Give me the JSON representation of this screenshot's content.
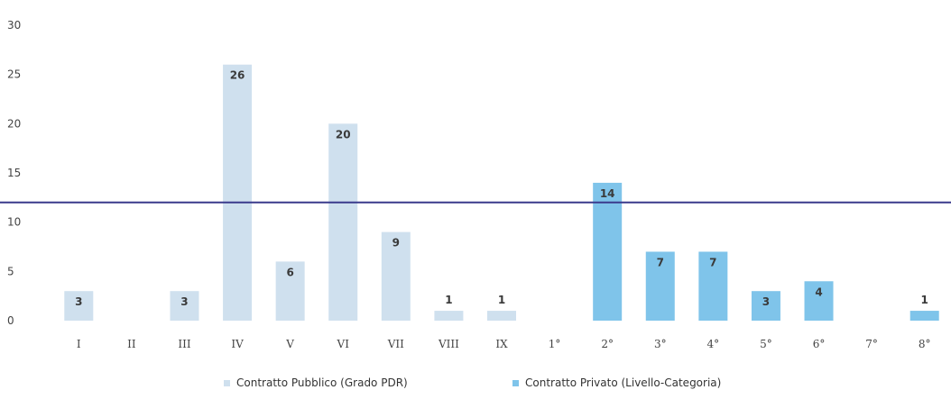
{
  "chart_data": {
    "type": "bar",
    "title": "",
    "xlabel": "",
    "ylabel": "",
    "ylim": [
      0,
      30
    ],
    "yticks": [
      0,
      5,
      10,
      15,
      20,
      25,
      30
    ],
    "categories": [
      "I",
      "II",
      "III",
      "IV",
      "V",
      "VI",
      "VII",
      "VIII",
      "IX",
      "1°",
      "2°",
      "3°",
      "4°",
      "5°",
      "6°",
      "7°",
      "8°"
    ],
    "series": [
      {
        "name": "Contratto Pubblico (Grado PDR)",
        "color": "#cfe0ee",
        "values": [
          3,
          0,
          3,
          26,
          6,
          20,
          9,
          1,
          1,
          0,
          0,
          0,
          0,
          0,
          0,
          0,
          0
        ]
      },
      {
        "name": "Contratto Privato (Livello-Categoria)",
        "color": "#7fc4ea",
        "values": [
          0,
          0,
          0,
          0,
          0,
          0,
          0,
          0,
          0,
          0,
          14,
          7,
          7,
          3,
          4,
          0,
          1
        ]
      }
    ],
    "reference_line": {
      "value": 12,
      "color": "#3a3a8c"
    },
    "grid": false,
    "legend_position": "bottom"
  }
}
